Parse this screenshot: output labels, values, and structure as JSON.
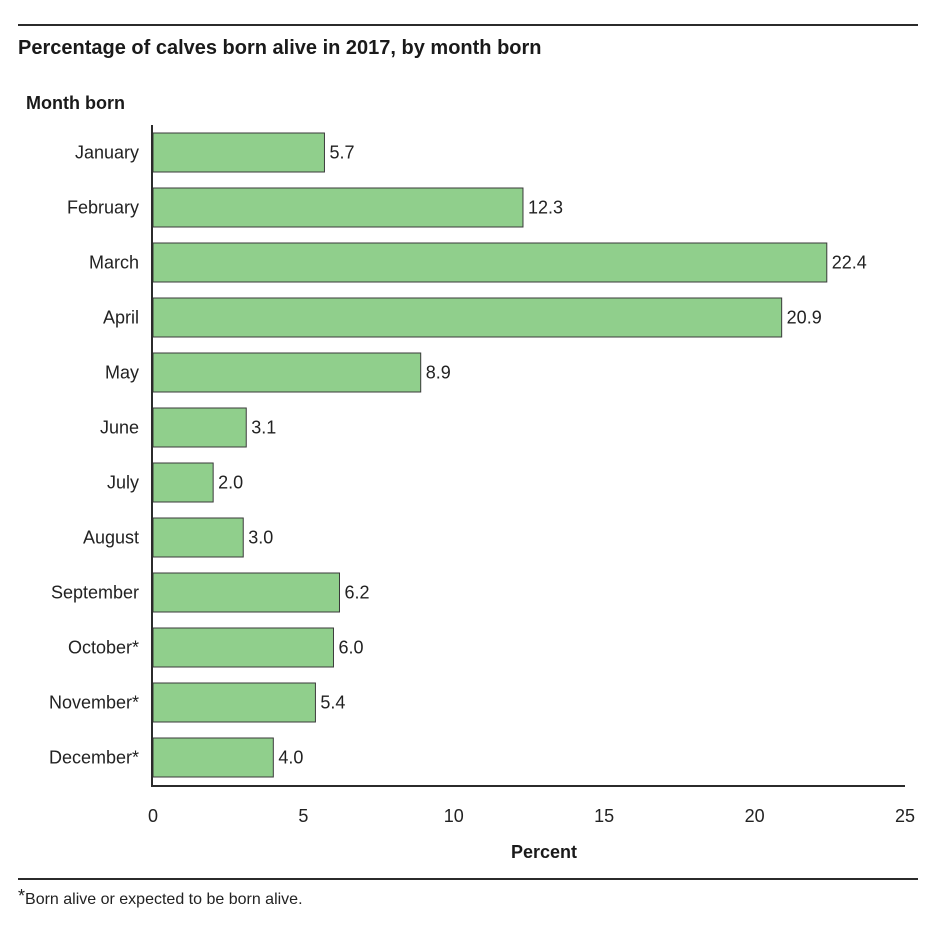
{
  "title": "Percentage of calves born alive in 2017, by month born",
  "footnote": {
    "marker": "*",
    "text": "Born alive or expected to be born alive."
  },
  "chart_data": {
    "type": "bar",
    "orientation": "horizontal",
    "title": "Percentage of calves born alive in 2017, by month born",
    "xlabel": "Percent",
    "ylabel": "Month born",
    "categories": [
      "January",
      "February",
      "March",
      "April",
      "May",
      "June",
      "July",
      "August",
      "September",
      "October*",
      "November*",
      "December*"
    ],
    "values": [
      5.7,
      12.3,
      22.4,
      20.9,
      8.9,
      3.1,
      2.0,
      3.0,
      6.2,
      6.0,
      5.4,
      4.0
    ],
    "value_labels": [
      "5.7",
      "12.3",
      "22.4",
      "20.9",
      "8.9",
      "3.1",
      "2.0",
      "3.0",
      "6.2",
      "6.0",
      "5.4",
      "4.0"
    ],
    "xlim": [
      0,
      25
    ],
    "xticks": [
      0,
      5,
      10,
      15,
      20,
      25
    ],
    "grid": false,
    "legend": "none",
    "bar_color": "#90CF8C",
    "bar_stroke": "#3a3a3a"
  }
}
